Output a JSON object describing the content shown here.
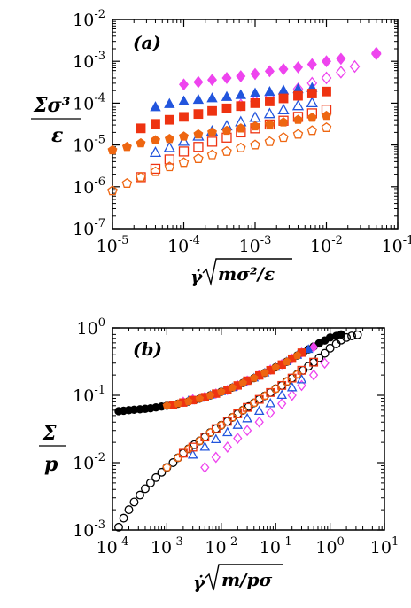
{
  "chart_data": [
    {
      "type": "scatter",
      "panel_label": "(a)",
      "xscale": "log",
      "yscale": "log",
      "xlim": [
        1e-05,
        0.1
      ],
      "ylim": [
        1e-07,
        0.01
      ],
      "xticks": [
        {
          "base": "10",
          "exp": "-5"
        },
        {
          "base": "10",
          "exp": "-4"
        },
        {
          "base": "10",
          "exp": "-3"
        },
        {
          "base": "10",
          "exp": "-2"
        },
        {
          "base": "10",
          "exp": "-1"
        }
      ],
      "yticks": [
        {
          "base": "10",
          "exp": "-7"
        },
        {
          "base": "10",
          "exp": "-6"
        },
        {
          "base": "10",
          "exp": "-5"
        },
        {
          "base": "10",
          "exp": "-4"
        },
        {
          "base": "10",
          "exp": "-3"
        },
        {
          "base": "10",
          "exp": "-2"
        }
      ],
      "xlabel": "γ̇√(mσ²/ε)",
      "ylabel_num": "Σσ³",
      "ylabel_den": "ε",
      "series": [
        {
          "marker": "diamond",
          "filled": true,
          "color": "#ee44ee",
          "x": [
            0.0001,
            0.00016,
            0.00025,
            0.0004,
            0.00063,
            0.001,
            0.0016,
            0.0025,
            0.004,
            0.0063,
            0.01,
            0.016,
            0.05
          ],
          "y": [
            0.00028,
            0.00032,
            0.00036,
            0.0004,
            0.00044,
            0.0005,
            0.00058,
            0.00065,
            0.00072,
            0.00085,
            0.001,
            0.00115,
            0.0016
          ]
        },
        {
          "marker": "diamond",
          "filled": false,
          "color": "#ee44ee",
          "x": [
            0.00063,
            0.001,
            0.0016,
            0.0025,
            0.004,
            0.0063,
            0.01,
            0.016,
            0.025,
            0.05
          ],
          "y": [
            9e-05,
            0.00011,
            0.00014,
            0.00017,
            0.00022,
            0.0003,
            0.0004,
            0.00055,
            0.00075,
            0.0015
          ]
        },
        {
          "marker": "triangle",
          "filled": true,
          "color": "#2255dd",
          "x": [
            4e-05,
            6.3e-05,
            0.0001,
            0.00016,
            0.00025,
            0.0004,
            0.00063,
            0.001,
            0.0016,
            0.0025,
            0.004,
            0.0063
          ],
          "y": [
            8e-05,
            9.5e-05,
            0.00011,
            0.00012,
            0.00013,
            0.00014,
            0.000155,
            0.00017,
            0.000185,
            0.0002,
            0.000215,
            0.00023
          ]
        },
        {
          "marker": "triangle",
          "filled": false,
          "color": "#2255dd",
          "x": [
            4e-05,
            6.3e-05,
            0.0001,
            0.00016,
            0.00025,
            0.0004,
            0.00063,
            0.001,
            0.0016,
            0.0025,
            0.004,
            0.0063
          ],
          "y": [
            6.5e-06,
            8.5e-06,
            1.2e-05,
            1.6e-05,
            2.1e-05,
            2.8e-05,
            3.5e-05,
            4.5e-05,
            5.5e-05,
            6.8e-05,
            8.5e-05,
            0.0001
          ]
        },
        {
          "marker": "square",
          "filled": true,
          "color": "#ee3311",
          "x": [
            2.5e-05,
            4e-05,
            6.3e-05,
            0.0001,
            0.00016,
            0.00025,
            0.0004,
            0.00063,
            0.001,
            0.0016,
            0.0025,
            0.004,
            0.0063,
            0.01
          ],
          "y": [
            2.5e-05,
            3.2e-05,
            4e-05,
            4.7e-05,
            5.5e-05,
            6.5e-05,
            7.5e-05,
            8.5e-05,
            0.0001,
            0.00011,
            0.00013,
            0.00015,
            0.00017,
            0.00019
          ]
        },
        {
          "marker": "square",
          "filled": false,
          "color": "#ee3311",
          "x": [
            2.5e-05,
            4e-05,
            6.3e-05,
            0.0001,
            0.00016,
            0.00025,
            0.0004,
            0.00063,
            0.001,
            0.0016,
            0.0025,
            0.004,
            0.0063,
            0.01
          ],
          "y": [
            1.7e-06,
            2.7e-06,
            4.5e-06,
            7e-06,
            9e-06,
            1.2e-05,
            1.5e-05,
            2e-05,
            2.5e-05,
            3.1e-05,
            3.8e-05,
            4.7e-05,
            5.7e-05,
            7e-05
          ]
        },
        {
          "marker": "pentagon",
          "filled": true,
          "color": "#ee6611",
          "x": [
            1e-05,
            1.6e-05,
            2.5e-05,
            4e-05,
            6.3e-05,
            0.0001,
            0.00016,
            0.00025,
            0.0004,
            0.00063,
            0.001,
            0.0016,
            0.0025,
            0.004,
            0.0063,
            0.01
          ],
          "y": [
            7.5e-06,
            9e-06,
            1.1e-05,
            1.3e-05,
            1.4e-05,
            1.6e-05,
            1.8e-05,
            2e-05,
            2.2e-05,
            2.5e-05,
            2.8e-05,
            3.1e-05,
            3.5e-05,
            4e-05,
            4.5e-05,
            5e-05
          ]
        },
        {
          "marker": "pentagon",
          "filled": false,
          "color": "#ee6611",
          "x": [
            1e-05,
            1.6e-05,
            2.5e-05,
            4e-05,
            6.3e-05,
            0.0001,
            0.00016,
            0.00025,
            0.0004,
            0.00063,
            0.001,
            0.0016,
            0.0025,
            0.004,
            0.0063,
            0.01
          ],
          "y": [
            8e-07,
            1.2e-06,
            1.7e-06,
            2.3e-06,
            3e-06,
            3.8e-06,
            4.7e-06,
            5.8e-06,
            7e-06,
            8.5e-06,
            1e-05,
            1.2e-05,
            1.5e-05,
            1.8e-05,
            2.2e-05,
            2.6e-05
          ]
        }
      ]
    },
    {
      "type": "scatter",
      "panel_label": "(b)",
      "xscale": "log",
      "yscale": "log",
      "xlim": [
        0.0001,
        10
      ],
      "ylim": [
        0.001,
        1
      ],
      "xticks": [
        {
          "base": "10",
          "exp": "-4"
        },
        {
          "base": "10",
          "exp": "-3"
        },
        {
          "base": "10",
          "exp": "-2"
        },
        {
          "base": "10",
          "exp": "-1"
        },
        {
          "base": "10",
          "exp": "0"
        },
        {
          "base": "10",
          "exp": "1"
        }
      ],
      "yticks": [
        {
          "base": "10",
          "exp": "-3"
        },
        {
          "base": "10",
          "exp": "-2"
        },
        {
          "base": "10",
          "exp": "-1"
        },
        {
          "base": "10",
          "exp": "0"
        }
      ],
      "xlabel": "γ̇√(m/pσ)",
      "ylabel_num": "Σ",
      "ylabel_den": "p",
      "series": [
        {
          "marker": "circle",
          "filled": true,
          "color": "#000000",
          "x": [
            0.00013,
            0.00016,
            0.0002,
            0.00025,
            0.00032,
            0.0004,
            0.0005,
            0.00063,
            0.0008,
            0.001,
            0.0013,
            0.0016,
            0.002,
            0.0025,
            0.0032,
            0.004,
            0.005,
            0.0063,
            0.008,
            0.01,
            0.013,
            0.016,
            0.02,
            0.025,
            0.032,
            0.04,
            0.05,
            0.063,
            0.08,
            0.1,
            0.13,
            0.16,
            0.2,
            0.25,
            0.32,
            0.4,
            0.5,
            0.63,
            0.8,
            1.0,
            1.3,
            1.6
          ],
          "y": [
            0.058,
            0.059,
            0.06,
            0.061,
            0.062,
            0.063,
            0.064,
            0.066,
            0.068,
            0.07,
            0.072,
            0.075,
            0.078,
            0.081,
            0.085,
            0.089,
            0.094,
            0.1,
            0.106,
            0.113,
            0.121,
            0.13,
            0.14,
            0.152,
            0.165,
            0.18,
            0.197,
            0.215,
            0.236,
            0.26,
            0.286,
            0.315,
            0.35,
            0.39,
            0.43,
            0.48,
            0.53,
            0.59,
            0.65,
            0.72,
            0.76,
            0.8
          ]
        },
        {
          "marker": "circle",
          "filled": false,
          "color": "#000000",
          "x": [
            0.00013,
            0.00016,
            0.0002,
            0.00025,
            0.00032,
            0.0004,
            0.0005,
            0.00063,
            0.0008,
            0.001,
            0.0013,
            0.0016,
            0.002,
            0.0025,
            0.0032,
            0.004,
            0.005,
            0.0063,
            0.008,
            0.01,
            0.013,
            0.016,
            0.02,
            0.025,
            0.032,
            0.04,
            0.05,
            0.063,
            0.08,
            0.1,
            0.13,
            0.16,
            0.2,
            0.25,
            0.32,
            0.4,
            0.5,
            0.63,
            0.8,
            1.0,
            1.3,
            1.6,
            2.0,
            2.5,
            3.2
          ],
          "y": [
            0.0011,
            0.0015,
            0.002,
            0.0026,
            0.0033,
            0.0041,
            0.005,
            0.006,
            0.0072,
            0.0085,
            0.01,
            0.0118,
            0.0138,
            0.016,
            0.0185,
            0.021,
            0.024,
            0.028,
            0.032,
            0.036,
            0.041,
            0.047,
            0.053,
            0.06,
            0.068,
            0.077,
            0.087,
            0.098,
            0.11,
            0.125,
            0.14,
            0.16,
            0.18,
            0.205,
            0.235,
            0.27,
            0.31,
            0.36,
            0.42,
            0.5,
            0.58,
            0.66,
            0.72,
            0.76,
            0.79
          ]
        },
        {
          "marker": "diamond",
          "filled": true,
          "color": "#ee44ee",
          "x": [
            0.002,
            0.003,
            0.005,
            0.008,
            0.013,
            0.02,
            0.03,
            0.05,
            0.08,
            0.13,
            0.2,
            0.3,
            0.5
          ],
          "y": [
            0.08,
            0.087,
            0.095,
            0.106,
            0.12,
            0.14,
            0.165,
            0.2,
            0.24,
            0.29,
            0.35,
            0.43,
            0.52
          ]
        },
        {
          "marker": "diamond",
          "filled": false,
          "color": "#ee44ee",
          "x": [
            0.005,
            0.008,
            0.013,
            0.02,
            0.03,
            0.05,
            0.08,
            0.13,
            0.2,
            0.3,
            0.5,
            0.8
          ],
          "y": [
            0.0085,
            0.012,
            0.017,
            0.023,
            0.03,
            0.04,
            0.055,
            0.075,
            0.1,
            0.14,
            0.2,
            0.3
          ]
        },
        {
          "marker": "triangle",
          "filled": true,
          "color": "#2255dd",
          "x": [
            0.0025,
            0.004,
            0.0063,
            0.01,
            0.016,
            0.025,
            0.04,
            0.063,
            0.1,
            0.16,
            0.25,
            0.4
          ],
          "y": [
            0.083,
            0.09,
            0.1,
            0.113,
            0.13,
            0.152,
            0.18,
            0.215,
            0.26,
            0.315,
            0.39,
            0.48
          ]
        },
        {
          "marker": "triangle",
          "filled": false,
          "color": "#2255dd",
          "x": [
            0.003,
            0.005,
            0.008,
            0.013,
            0.02,
            0.03,
            0.05,
            0.08,
            0.13,
            0.2,
            0.3
          ],
          "y": [
            0.013,
            0.017,
            0.022,
            0.028,
            0.036,
            0.045,
            0.058,
            0.075,
            0.1,
            0.13,
            0.17
          ]
        },
        {
          "marker": "square",
          "filled": true,
          "color": "#ee3311",
          "x": [
            0.0013,
            0.002,
            0.003,
            0.005,
            0.008,
            0.013,
            0.02,
            0.03,
            0.05,
            0.08,
            0.13,
            0.2,
            0.3
          ],
          "y": [
            0.072,
            0.078,
            0.085,
            0.094,
            0.106,
            0.121,
            0.14,
            0.165,
            0.197,
            0.236,
            0.286,
            0.35,
            0.43
          ]
        },
        {
          "marker": "square",
          "filled": false,
          "color": "#ee3311",
          "x": [
            0.002,
            0.003,
            0.005,
            0.008,
            0.013,
            0.02,
            0.03,
            0.05,
            0.08,
            0.13,
            0.2,
            0.3,
            0.5
          ],
          "y": [
            0.0138,
            0.017,
            0.024,
            0.032,
            0.041,
            0.053,
            0.066,
            0.087,
            0.11,
            0.14,
            0.18,
            0.235,
            0.31
          ]
        },
        {
          "marker": "pentagon",
          "filled": true,
          "color": "#ee6611",
          "x": [
            0.001,
            0.0016,
            0.0025,
            0.004,
            0.0063,
            0.01,
            0.016,
            0.025,
            0.04,
            0.063,
            0.1,
            0.16,
            0.25
          ],
          "y": [
            0.07,
            0.075,
            0.081,
            0.089,
            0.1,
            0.113,
            0.13,
            0.152,
            0.18,
            0.215,
            0.26,
            0.315,
            0.39
          ]
        },
        {
          "marker": "pentagon",
          "filled": false,
          "color": "#ee6611",
          "x": [
            0.001,
            0.0016,
            0.0025,
            0.004,
            0.0063,
            0.01,
            0.016,
            0.025,
            0.04,
            0.063,
            0.1,
            0.16,
            0.25
          ],
          "y": [
            0.0085,
            0.0118,
            0.016,
            0.021,
            0.028,
            0.036,
            0.047,
            0.06,
            0.077,
            0.098,
            0.125,
            0.16,
            0.205
          ]
        }
      ]
    }
  ]
}
